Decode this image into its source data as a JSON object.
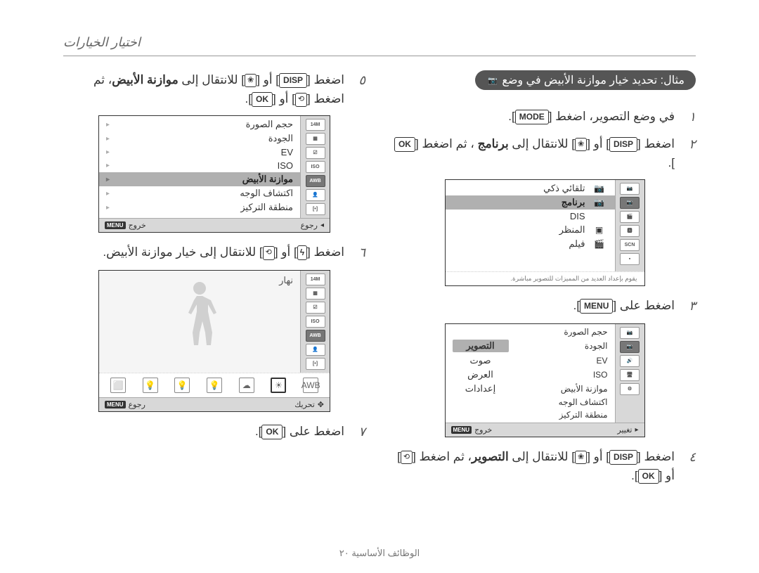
{
  "header_title": "اختيار الخيارات",
  "example_badge": "مثال: تحديد خيار موازنة الأبيض في وضع",
  "cam_badge_glyph": "📷",
  "steps_right": [
    {
      "n": "١",
      "parts": [
        "في وضع التصوير، اضغط ",
        {
          "key": "MODE"
        },
        "."
      ]
    },
    {
      "n": "٢",
      "parts": [
        "اضغط ",
        {
          "key": "DISP"
        },
        " أو ",
        {
          "icon": "flower"
        },
        " للانتقال إلى ",
        {
          "bold": "برنامج"
        },
        " ، ثم اضغط ",
        {
          "key": "OK"
        },
        "."
      ]
    }
  ],
  "steps_right_after1": [
    {
      "n": "٣",
      "parts": [
        "اضغط على ",
        {
          "key": "MENU"
        },
        "."
      ]
    }
  ],
  "steps_right_after2": [
    {
      "n": "٤",
      "parts": [
        "اضغط ",
        {
          "key": "DISP"
        },
        " أو ",
        {
          "icon": "flower"
        },
        " للانتقال إلى ",
        {
          "bold": "التصوير"
        },
        "، ثم اضغط ",
        {
          "icon": "timer"
        },
        " أو ",
        {
          "key": "OK"
        },
        "."
      ]
    }
  ],
  "steps_left": [
    {
      "n": "٥",
      "parts": [
        "اضغط ",
        {
          "key": "DISP"
        },
        " أو ",
        {
          "icon": "flower"
        },
        " للانتقال إلى ",
        {
          "bold": "موازنة الأبيض"
        },
        "، ثم اضغط ",
        {
          "icon": "timer"
        },
        " أو ",
        {
          "key": "OK"
        },
        "."
      ]
    }
  ],
  "steps_left_after1": [
    {
      "n": "٦",
      "parts": [
        "اضغط ",
        {
          "icon": "flash"
        },
        " أو ",
        {
          "icon": "timer"
        },
        " للانتقال إلى خيار موازنة الأبيض."
      ]
    }
  ],
  "steps_left_after2": [
    {
      "n": "٧",
      "parts": [
        "اضغط على ",
        {
          "key": "OK"
        },
        "."
      ]
    }
  ],
  "screen_modes": {
    "sidebar": [
      "📷",
      "📷",
      "🎬",
      "🅰",
      "SCN",
      "▪"
    ],
    "rows": [
      {
        "ico": "📷",
        "label": "تلقائي ذكي",
        "sel": false
      },
      {
        "ico": "📷",
        "label": "برنامج",
        "sel": true
      },
      {
        "ico": " ",
        "label": "DIS",
        "sel": false
      },
      {
        "ico": "▣",
        "label": "المنظر",
        "sel": false
      },
      {
        "ico": "🎬",
        "label": "فيلم",
        "sel": false
      }
    ],
    "hint": "يقوم بإعداد العديد من المميزات للتصوير مباشرة."
  },
  "screen_menu": {
    "sidebar": [
      "📷",
      "📷",
      "🔊",
      "🖥",
      "⚙"
    ],
    "rows_right": [
      "حجم الصورة",
      "الجودة",
      "EV",
      "ISO",
      "موازنة الأبيض",
      "اكتشاف الوجه",
      "منطقة التركيز"
    ],
    "rows_left": [
      "",
      "التصوير",
      "صوت",
      "العرض",
      "إعدادات"
    ],
    "sel_left_index": 1,
    "footer_right": "تغيير",
    "footer_left": "خروج"
  },
  "screen_settings": {
    "sidebar_icons": [
      "14M",
      "▦",
      "☑",
      "ISO",
      "AWB",
      "👤",
      "[•]"
    ],
    "sel_index": 4,
    "rows": [
      {
        "label": "حجم الصورة",
        "sub": ""
      },
      {
        "label": "الجودة",
        "sub": ""
      },
      {
        "label": "EV",
        "sub": ""
      },
      {
        "label": "ISO",
        "sub": ""
      },
      {
        "label": "موازنة الأبيض",
        "sub": "",
        "sel": true
      },
      {
        "label": "اكتشاف الوجه",
        "sub": ""
      },
      {
        "label": "منطقة التركيز",
        "sub": ""
      }
    ],
    "footer_right": "رجوع",
    "footer_left": "خروج"
  },
  "screen_wb": {
    "sidebar_icons": [
      "14M",
      "▦",
      "☑",
      "ISO",
      "AWB",
      "👤",
      "[•]"
    ],
    "sel_index": 4,
    "daylight_label": "نهار",
    "swatches": [
      "AWB",
      "☀",
      "☁",
      "💡",
      "💡",
      "💡",
      "⬜"
    ],
    "swatch_sel": 1,
    "footer_center": "تحريك",
    "footer_left": "رجوع"
  },
  "footer_text": "الوظائف الأساسية   ٢٠",
  "colors": {
    "bg": "#ffffff",
    "text": "#333333",
    "muted": "#666666",
    "divider": "#999999",
    "badge_bg": "#555555",
    "badge_fg": "#ffffff",
    "screen_border": "#333333",
    "sidebar_bg": "#d8d8d8",
    "row_sel": "#b0b0b0"
  }
}
